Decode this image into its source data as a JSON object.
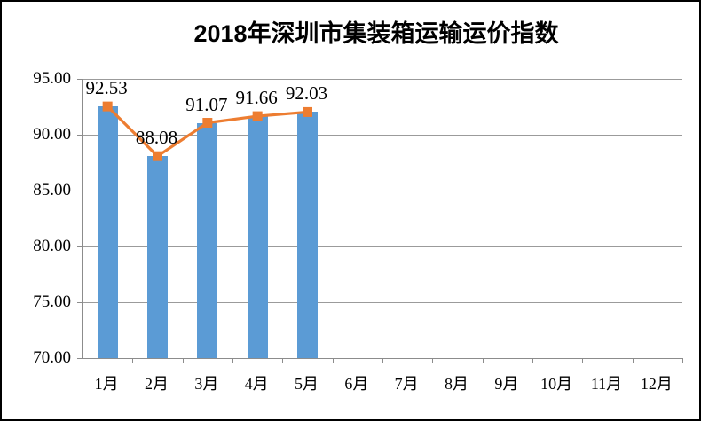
{
  "title": "2018年深圳市集装箱运输运价指数",
  "chart_data": {
    "type": "bar",
    "subtype": "bar-and-line combo",
    "title": "2018年深圳市集装箱运输运价指数",
    "categories": [
      "1月",
      "2月",
      "3月",
      "4月",
      "5月",
      "6月",
      "7月",
      "8月",
      "9月",
      "10月",
      "11月",
      "12月"
    ],
    "series": [
      {
        "type": "bar",
        "color": "#5B9BD5",
        "values": [
          92.53,
          88.08,
          91.07,
          91.66,
          92.03,
          null,
          null,
          null,
          null,
          null,
          null,
          null
        ]
      },
      {
        "type": "line",
        "color": "#ED7D31",
        "marker": "square",
        "values": [
          92.53,
          88.08,
          91.07,
          91.66,
          92.03,
          null,
          null,
          null,
          null,
          null,
          null,
          null
        ]
      }
    ],
    "data_labels": [
      "92.53",
      "88.08",
      "91.07",
      "91.66",
      "92.03"
    ],
    "y_axis": {
      "min": 70,
      "max": 95,
      "step": 5,
      "tick_labels": [
        "95.00",
        "90.00",
        "85.00",
        "80.00",
        "75.00",
        "70.00"
      ]
    },
    "x_axis": {
      "tick_labels": [
        "1月",
        "2月",
        "3月",
        "4月",
        "5月",
        "6月",
        "7月",
        "8月",
        "9月",
        "10月",
        "11月",
        "12月"
      ]
    },
    "grid": true,
    "legend": "none",
    "colors": {
      "bar": "#5B9BD5",
      "line": "#ED7D31",
      "gridline": "#9B9B9B",
      "axis": "#8C8C8C",
      "text": "#000000",
      "background": "#FFFFFF",
      "frame_border": "#000000"
    }
  }
}
